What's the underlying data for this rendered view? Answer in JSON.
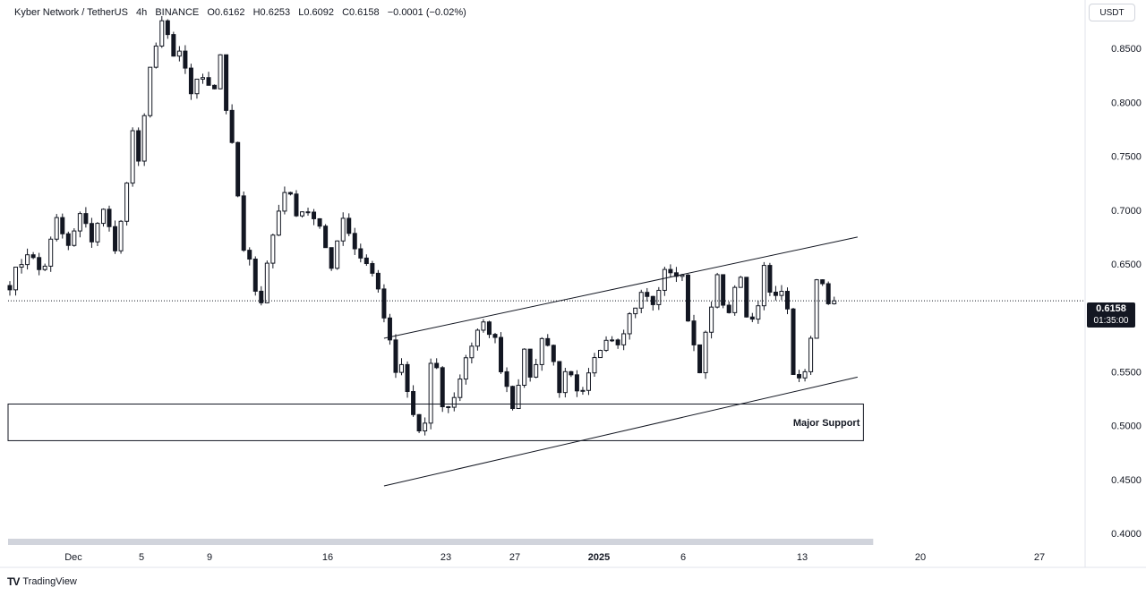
{
  "header": {
    "symbol": "Kyber Network / TetherUS",
    "interval": "4h",
    "exchange": "BINANCE",
    "open": "O0.6162",
    "high": "H0.6253",
    "low": "L0.6092",
    "close": "C0.6158",
    "change": "−0.0001 (−0.02%)"
  },
  "currency": "USDT",
  "last_price": {
    "price": "0.6158",
    "countdown": "01:35:00"
  },
  "footer": {
    "logo": "TV",
    "brand": "TradingView"
  },
  "colors": {
    "text": "#131722",
    "grid": "#f0f3fa",
    "candle": "#131722",
    "price_line": "#131722",
    "scrollbar": "#d1d4dc"
  },
  "chart_data": {
    "type": "candlestick",
    "ylim": [
      0.39,
      0.895
    ],
    "y_ticks": [
      "0.8500",
      "0.8000",
      "0.7500",
      "0.7000",
      "0.6500",
      "0.5500",
      "0.5000",
      "0.4500",
      "0.4000"
    ],
    "x_ticks": [
      "Dec",
      "5",
      "9",
      "16",
      "23",
      "27",
      "2025",
      "6",
      "13",
      "20",
      "27"
    ],
    "last_price": 0.6158,
    "path": [
      [
        0.632,
        0
      ],
      [
        0.662,
        3
      ],
      [
        0.64,
        5.5
      ],
      [
        0.69,
        8
      ],
      [
        0.665,
        10
      ],
      [
        0.7,
        12.5
      ],
      [
        0.672,
        14
      ],
      [
        0.705,
        16.5
      ],
      [
        0.66,
        18
      ],
      [
        0.72,
        20
      ],
      [
        0.77,
        21
      ],
      [
        0.74,
        22.5
      ],
      [
        0.835,
        23.5
      ],
      [
        0.82,
        24.5
      ],
      [
        0.88,
        25.5
      ],
      [
        0.862,
        27
      ],
      [
        0.838,
        28
      ],
      [
        0.845,
        29.5
      ],
      [
        0.81,
        31
      ],
      [
        0.825,
        33
      ],
      [
        0.815,
        35
      ],
      [
        0.845,
        36
      ],
      [
        0.77,
        37.5
      ],
      [
        0.745,
        38.5
      ],
      [
        0.68,
        39.5
      ],
      [
        0.64,
        40.5
      ],
      [
        0.66,
        41.5
      ],
      [
        0.6,
        42.5
      ],
      [
        0.65,
        44
      ],
      [
        0.69,
        45.5
      ],
      [
        0.72,
        47
      ],
      [
        0.7,
        49
      ],
      [
        0.7,
        51
      ],
      [
        0.68,
        53
      ],
      [
        0.65,
        55
      ],
      [
        0.695,
        57
      ],
      [
        0.665,
        59
      ],
      [
        0.65,
        61
      ],
      [
        0.63,
        63
      ],
      [
        0.595,
        64
      ],
      [
        0.58,
        65
      ],
      [
        0.545,
        66
      ],
      [
        0.56,
        67.5
      ],
      [
        0.5,
        68.5
      ],
      [
        0.52,
        69.5
      ],
      [
        0.47,
        70.5
      ],
      [
        0.53,
        71.5
      ],
      [
        0.575,
        72.5
      ],
      [
        0.515,
        74
      ],
      [
        0.525,
        76
      ],
      [
        0.565,
        78
      ],
      [
        0.585,
        80
      ],
      [
        0.595,
        81.5
      ],
      [
        0.578,
        83
      ],
      [
        0.555,
        84
      ],
      [
        0.52,
        86
      ],
      [
        0.565,
        88
      ],
      [
        0.54,
        89.5
      ],
      [
        0.585,
        91
      ],
      [
        0.57,
        92.5
      ],
      [
        0.535,
        94
      ],
      [
        0.55,
        95.5
      ],
      [
        0.52,
        97.5
      ],
      [
        0.56,
        100
      ],
      [
        0.585,
        102
      ],
      [
        0.58,
        104
      ],
      [
        0.608,
        106.5
      ],
      [
        0.625,
        108.5
      ],
      [
        0.61,
        110
      ],
      [
        0.638,
        111.5
      ],
      [
        0.645,
        113
      ],
      [
        0.635,
        115
      ],
      [
        0.585,
        116.5
      ],
      [
        0.555,
        118
      ],
      [
        0.595,
        119.5
      ],
      [
        0.635,
        121
      ],
      [
        0.6,
        123
      ],
      [
        0.648,
        124.5
      ],
      [
        0.6,
        126
      ],
      [
        0.595,
        127.5
      ],
      [
        0.652,
        129
      ],
      [
        0.615,
        130.5
      ],
      [
        0.635,
        132.5
      ],
      [
        0.545,
        134
      ],
      [
        0.54,
        135.5
      ],
      [
        0.56,
        136.5
      ],
      [
        0.64,
        138
      ],
      [
        0.62,
        139.5
      ],
      [
        0.615,
        140.5
      ]
    ],
    "annotations": [
      {
        "type": "trendline",
        "label": "",
        "points": [
          [
            64,
            0.581
          ],
          [
            145,
            0.675
          ]
        ]
      },
      {
        "type": "trendline",
        "label": "",
        "points": [
          [
            64,
            0.444
          ],
          [
            145,
            0.545
          ]
        ]
      },
      {
        "type": "zone",
        "label": "Major Support",
        "y_range": [
          0.486,
          0.52
        ],
        "x_range": [
          0,
          146
        ]
      },
      {
        "type": "scrollbar",
        "label": "",
        "x_range": [
          0,
          144
        ]
      }
    ]
  }
}
